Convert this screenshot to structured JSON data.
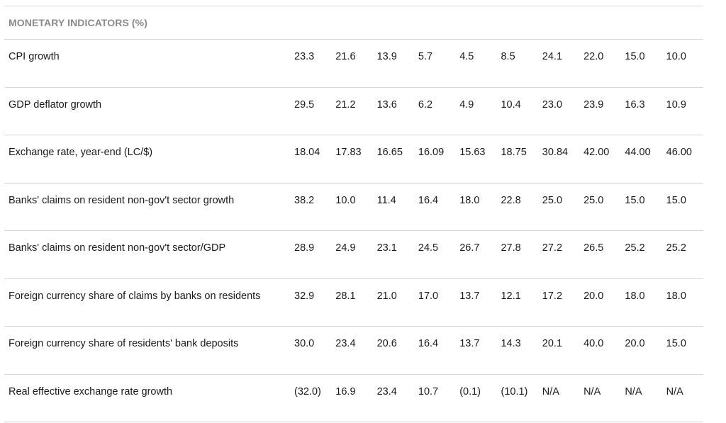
{
  "section_title": "MONETARY INDICATORS (%)",
  "rows": [
    {
      "label": "CPI growth",
      "values": [
        "23.3",
        "21.6",
        "13.9",
        "5.7",
        "4.5",
        "8.5",
        "24.1",
        "22.0",
        "15.0",
        "10.0"
      ]
    },
    {
      "label": "GDP deflator growth",
      "values": [
        "29.5",
        "21.2",
        "13.6",
        "6.2",
        "4.9",
        "10.4",
        "23.0",
        "23.9",
        "16.3",
        "10.9"
      ]
    },
    {
      "label": "Exchange rate, year-end (LC/$)",
      "values": [
        "18.04",
        "17.83",
        "16.65",
        "16.09",
        "15.63",
        "18.75",
        "30.84",
        "42.00",
        "44.00",
        "46.00"
      ]
    },
    {
      "label": "Banks' claims on resident non-gov't sector growth",
      "values": [
        "38.2",
        "10.0",
        "11.4",
        "16.4",
        "18.0",
        "22.8",
        "25.0",
        "25.0",
        "15.0",
        "15.0"
      ]
    },
    {
      "label": "Banks' claims on resident non-gov't sector/GDP",
      "values": [
        "28.9",
        "24.9",
        "23.1",
        "24.5",
        "26.7",
        "27.8",
        "27.2",
        "26.5",
        "25.2",
        "25.2"
      ]
    },
    {
      "label": "Foreign currency share of claims by banks on residents",
      "values": [
        "32.9",
        "28.1",
        "21.0",
        "17.0",
        "13.7",
        "12.1",
        "17.2",
        "20.0",
        "18.0",
        "18.0"
      ]
    },
    {
      "label": "Foreign currency share of residents' bank deposits",
      "values": [
        "30.0",
        "23.4",
        "20.6",
        "16.4",
        "13.7",
        "14.3",
        "20.1",
        "40.0",
        "20.0",
        "15.0"
      ]
    },
    {
      "label": "Real effective exchange rate growth",
      "values": [
        "(32.0)",
        "16.9",
        "23.4",
        "10.7",
        "(0.1)",
        "(10.1)",
        "N/A",
        "N/A",
        "N/A",
        "N/A"
      ]
    }
  ]
}
